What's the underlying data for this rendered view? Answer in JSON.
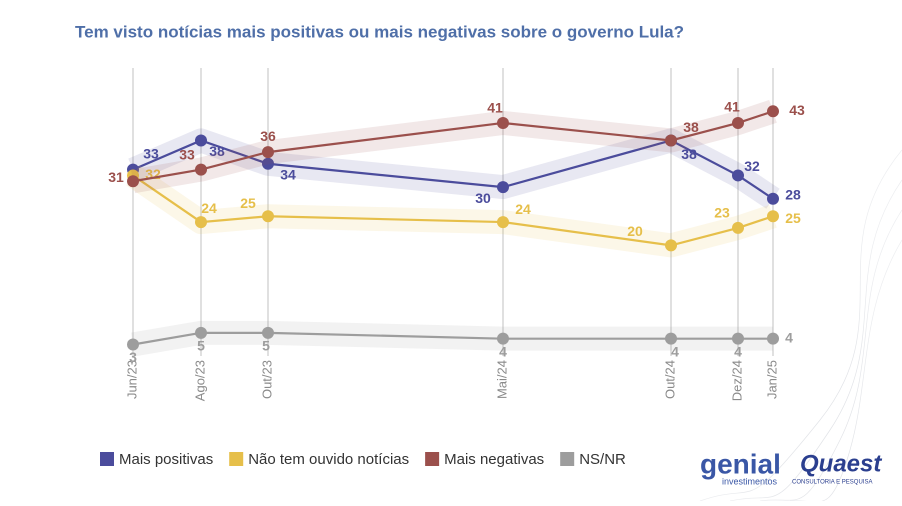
{
  "chart_data": {
    "type": "line",
    "title": "Tem visto notícias mais positivas ou mais negativas sobre o governo Lula?",
    "categories": [
      "Jun/23",
      "Ago/23",
      "Out/23",
      "Mai/24",
      "Out/24",
      "Dez/24",
      "Jan/25"
    ],
    "series": [
      {
        "name": "Mais positivas",
        "color": "#4b4c9c",
        "values": [
          33,
          38,
          34,
          30,
          38,
          32,
          28
        ]
      },
      {
        "name": "Não tem ouvido notícias",
        "color": "#e6bf4a",
        "values": [
          32,
          24,
          25,
          24,
          20,
          23,
          25
        ]
      },
      {
        "name": "Mais negativas",
        "color": "#9b504c",
        "values": [
          31,
          33,
          36,
          41,
          38,
          41,
          43
        ]
      },
      {
        "name": "NS/NR",
        "color": "#9d9d9d",
        "values": [
          3,
          5,
          5,
          4,
          4,
          4,
          4
        ]
      }
    ],
    "logos": {
      "genial": "genial",
      "genial_sub": "investimentos",
      "quaest": "Quaest",
      "quaest_sub": "CONSULTORIA E PESQUISA"
    }
  }
}
